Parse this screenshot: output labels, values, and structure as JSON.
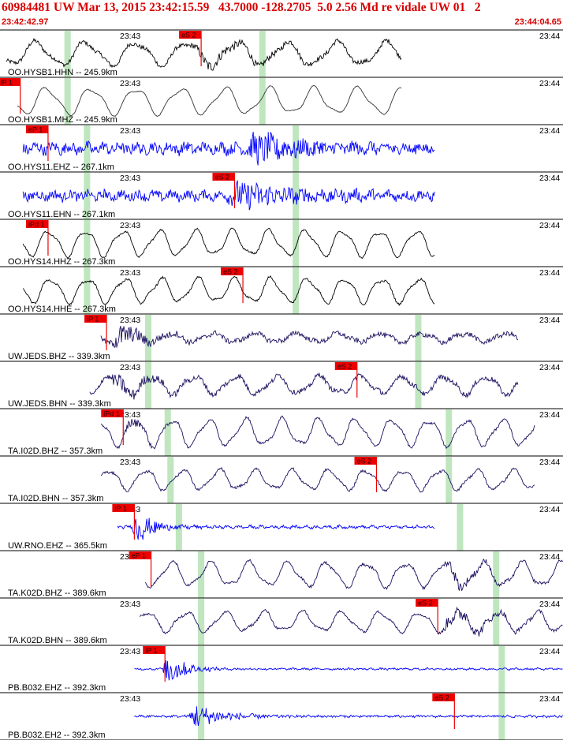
{
  "header": {
    "title": "60984481 UW Mar 13, 2015 23:42:15.59   43.7000 -128.2705  5.0 2.56 Md re vidale UW 01   2",
    "time_start": "23:42:42.97",
    "time_end": "23:44:04.65"
  },
  "colors": {
    "header_red": "#d80000",
    "pick_red": "#ee0000",
    "band_green": "#bfe6bf",
    "trace_black": "#000000",
    "trace_blue": "#0000ff",
    "trace_navy": "#1a1060"
  },
  "chart_data": {
    "type": "line",
    "minute_ticks": [
      {
        "label": "23:43",
        "t": 0.0
      },
      {
        "label": "23:44",
        "t": 1.0
      }
    ],
    "channels": [
      {
        "label": "OO.HYSB1.HHN -- 245.9km",
        "color": "#000000",
        "t_start": 0.0,
        "t_end": 0.71,
        "period": 0.09,
        "amp": 0.52,
        "noise": 0.1,
        "burst": {
          "t": 0.36,
          "len": 0.2,
          "gain": 0.18
        },
        "bands": [
          0.11,
          0.46
        ],
        "pick": {
          "label": "eS 2",
          "t": 0.35,
          "side": "left"
        }
      },
      {
        "label": "OO.HYSB1.MHZ -- 245.9km",
        "color": "#333333",
        "t_start": 0.02,
        "t_end": 0.71,
        "period": 0.08,
        "amp": 0.6,
        "noise": 0.02,
        "burst": null,
        "bands": [
          0.11,
          0.46
        ],
        "pick": {
          "label": "iP 1",
          "t": 0.025,
          "side": "left"
        }
      },
      {
        "label": "OO.HYS11.EHZ -- 267.1km",
        "color": "#0000ff",
        "t_start": 0.03,
        "t_end": 0.77,
        "period": 0.03,
        "amp": 0.12,
        "noise": 0.25,
        "burst": {
          "t": 0.45,
          "len": 0.15,
          "gain": 0.6
        },
        "bands": [
          0.145,
          0.52
        ],
        "pick": {
          "label": "eP 1",
          "t": 0.075,
          "side": "left"
        }
      },
      {
        "label": "OO.HYS11.EHN -- 267.1km",
        "color": "#0000ff",
        "t_start": 0.03,
        "t_end": 0.77,
        "period": 0.03,
        "amp": 0.1,
        "noise": 0.22,
        "burst": {
          "t": 0.42,
          "len": 0.18,
          "gain": 0.55
        },
        "bands": [
          0.145,
          0.52
        ],
        "pick": {
          "label": "eS 2",
          "t": 0.41,
          "side": "left"
        }
      },
      {
        "label": "OO.HYS14.HHZ -- 267.3km",
        "color": "#000000",
        "t_start": 0.03,
        "t_end": 0.77,
        "period": 0.066,
        "amp": 0.58,
        "noise": 0.04,
        "burst": null,
        "bands": [
          0.145,
          0.52
        ],
        "pick": {
          "label": "iPd 1",
          "t": 0.075,
          "side": "left"
        }
      },
      {
        "label": "OO.HYS14.HHE -- 267.3km",
        "color": "#000000",
        "t_start": 0.03,
        "t_end": 0.77,
        "period": 0.066,
        "amp": 0.55,
        "noise": 0.05,
        "burst": null,
        "bands": [
          0.145,
          0.52
        ],
        "pick": {
          "label": "eS 2",
          "t": 0.425,
          "side": "left"
        }
      },
      {
        "label": "UW.JEDS.BHZ -- 339.3km",
        "color": "#1a1060",
        "t_start": 0.17,
        "t_end": 0.92,
        "period": 0.075,
        "amp": 0.2,
        "noise": 0.12,
        "burst": {
          "t": 0.2,
          "len": 0.08,
          "gain": 0.55
        },
        "bands": [
          0.255,
          0.74
        ],
        "pick": {
          "label": "iP 1",
          "t": 0.18,
          "side": "left"
        }
      },
      {
        "label": "UW.JEDS.BHN -- 339.3km",
        "color": "#1a1060",
        "t_start": 0.15,
        "t_end": 0.92,
        "period": 0.075,
        "amp": 0.4,
        "noise": 0.12,
        "burst": {
          "t": 0.2,
          "len": 0.1,
          "gain": 0.3
        },
        "bands": [
          0.255,
          0.74
        ],
        "pick": {
          "label": "eS 2",
          "t": 0.63,
          "side": "left"
        }
      },
      {
        "label": "TA.I02D.BHZ -- 357.3km",
        "color": "#1a1060",
        "t_start": 0.17,
        "t_end": 0.95,
        "period": 0.066,
        "amp": 0.6,
        "noise": 0.06,
        "burst": {
          "t": 0.22,
          "len": 0.06,
          "gain": 0.2
        },
        "bands": [
          0.29,
          0.795
        ],
        "pick": {
          "label": "iPd 1",
          "t": 0.21,
          "side": "left"
        }
      },
      {
        "label": "TA.I02D.BHN -- 357.3km",
        "color": "#1a1060",
        "t_start": 0.17,
        "t_end": 0.95,
        "period": 0.066,
        "amp": 0.45,
        "noise": 0.06,
        "burst": null,
        "bands": [
          0.295,
          0.795
        ],
        "pick": {
          "label": "eS 2",
          "t": 0.665,
          "side": "left"
        }
      },
      {
        "label": "UW.RNO.EHZ -- 365.5km",
        "color": "#0000ff",
        "t_start": 0.2,
        "t_end": 0.77,
        "period": 0.02,
        "amp": 0.04,
        "noise": 0.06,
        "burst": {
          "t": 0.235,
          "len": 0.06,
          "gain": 0.8
        },
        "bands": [
          0.31,
          0.815
        ],
        "pick": {
          "label": "iP 1",
          "t": 0.23,
          "side": "left"
        }
      },
      {
        "label": "TA.K02D.BHZ -- 389.6km",
        "color": "#1a1060",
        "t_start": 0.25,
        "t_end": 1.0,
        "period": 0.07,
        "amp": 0.55,
        "noise": 0.06,
        "burst": {
          "t": 0.8,
          "len": 0.1,
          "gain": 0.25
        },
        "bands": [
          0.35,
          0.88
        ],
        "pick": {
          "label": "eP 1",
          "t": 0.26,
          "side": "left"
        }
      },
      {
        "label": "TA.K02D.BHN -- 389.6km",
        "color": "#1a1060",
        "t_start": 0.24,
        "t_end": 1.0,
        "period": 0.07,
        "amp": 0.45,
        "noise": 0.06,
        "burst": {
          "t": 0.8,
          "len": 0.12,
          "gain": 0.4
        },
        "bands": [
          0.35,
          0.88
        ],
        "pick": {
          "label": "eS 2",
          "t": 0.775,
          "side": "left"
        }
      },
      {
        "label": "PB.B032.EHZ -- 392.3km",
        "color": "#0000ff",
        "t_start": 0.23,
        "t_end": 1.0,
        "period": 0.02,
        "amp": 0.02,
        "noise": 0.04,
        "burst": {
          "t": 0.29,
          "len": 0.06,
          "gain": 0.9
        },
        "bands": [
          0.35,
          0.89
        ],
        "pick": {
          "label": "iP 1",
          "t": 0.285,
          "side": "left"
        }
      },
      {
        "label": "PB.B032.EH2 -- 392.3km",
        "color": "#0000ff",
        "t_start": 0.23,
        "t_end": 1.0,
        "period": 0.02,
        "amp": 0.02,
        "noise": 0.05,
        "burst": {
          "t": 0.34,
          "len": 0.1,
          "gain": 0.6
        },
        "bands": [
          0.35,
          0.89
        ],
        "pick": {
          "label": "eS 2",
          "t": 0.805,
          "side": "left"
        }
      }
    ]
  }
}
